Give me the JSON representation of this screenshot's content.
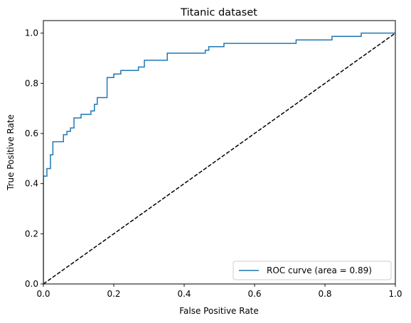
{
  "chart_data": {
    "type": "line",
    "title": "Titanic dataset",
    "xlabel": "False Positive Rate",
    "ylabel": "True Positive Rate",
    "xlim": [
      0.0,
      1.0
    ],
    "ylim": [
      0.0,
      1.05
    ],
    "x_ticks": [
      {
        "value": 0.0,
        "label": "0.0"
      },
      {
        "value": 0.2,
        "label": "0.2"
      },
      {
        "value": 0.4,
        "label": "0.4"
      },
      {
        "value": 0.6,
        "label": "0.6"
      },
      {
        "value": 0.8,
        "label": "0.8"
      },
      {
        "value": 1.0,
        "label": "1.0"
      }
    ],
    "y_ticks": [
      {
        "value": 0.0,
        "label": "0.0"
      },
      {
        "value": 0.2,
        "label": "0.2"
      },
      {
        "value": 0.4,
        "label": "0.4"
      },
      {
        "value": 0.6,
        "label": "0.6"
      },
      {
        "value": 0.8,
        "label": "0.8"
      },
      {
        "value": 1.0,
        "label": "1.0"
      }
    ],
    "grid": false,
    "legend_position": "bottom-right",
    "series": [
      {
        "name": "ROC curve (area = 0.89)",
        "color": "#1f77b4",
        "style": "solid",
        "step": true,
        "points": [
          [
            0.0,
            0.0
          ],
          [
            0.0,
            0.43
          ],
          [
            0.01,
            0.43
          ],
          [
            0.01,
            0.46
          ],
          [
            0.02,
            0.46
          ],
          [
            0.02,
            0.515
          ],
          [
            0.027,
            0.515
          ],
          [
            0.027,
            0.567
          ],
          [
            0.057,
            0.567
          ],
          [
            0.057,
            0.595
          ],
          [
            0.067,
            0.595
          ],
          [
            0.067,
            0.608
          ],
          [
            0.077,
            0.608
          ],
          [
            0.077,
            0.622
          ],
          [
            0.087,
            0.622
          ],
          [
            0.087,
            0.662
          ],
          [
            0.107,
            0.662
          ],
          [
            0.107,
            0.676
          ],
          [
            0.135,
            0.676
          ],
          [
            0.135,
            0.69
          ],
          [
            0.145,
            0.69
          ],
          [
            0.145,
            0.716
          ],
          [
            0.153,
            0.716
          ],
          [
            0.153,
            0.743
          ],
          [
            0.181,
            0.743
          ],
          [
            0.181,
            0.823
          ],
          [
            0.2,
            0.823
          ],
          [
            0.2,
            0.837
          ],
          [
            0.22,
            0.837
          ],
          [
            0.22,
            0.851
          ],
          [
            0.27,
            0.851
          ],
          [
            0.27,
            0.865
          ],
          [
            0.287,
            0.865
          ],
          [
            0.287,
            0.892
          ],
          [
            0.352,
            0.892
          ],
          [
            0.352,
            0.92
          ],
          [
            0.46,
            0.92
          ],
          [
            0.46,
            0.932
          ],
          [
            0.47,
            0.932
          ],
          [
            0.47,
            0.946
          ],
          [
            0.513,
            0.946
          ],
          [
            0.513,
            0.959
          ],
          [
            0.718,
            0.959
          ],
          [
            0.718,
            0.973
          ],
          [
            0.82,
            0.973
          ],
          [
            0.82,
            0.987
          ],
          [
            0.903,
            0.987
          ],
          [
            0.903,
            1.0
          ],
          [
            1.0,
            1.0
          ]
        ]
      },
      {
        "name": "",
        "color": "#000000",
        "style": "dashed",
        "step": false,
        "points": [
          [
            0.0,
            0.0
          ],
          [
            1.0,
            1.0
          ]
        ]
      }
    ]
  }
}
